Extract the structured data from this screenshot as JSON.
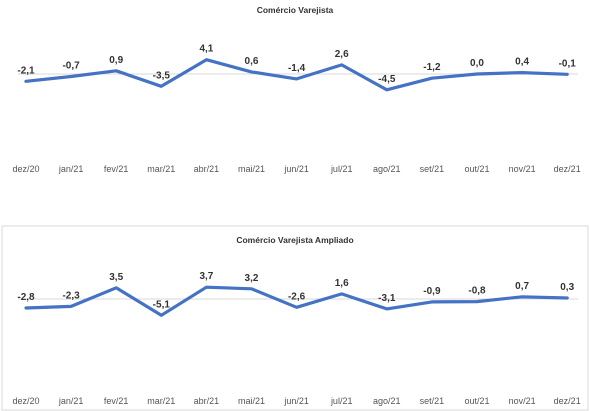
{
  "chart_data": [
    {
      "type": "line",
      "title": "Comércio Varejista",
      "categories": [
        "dez/20",
        "jan/21",
        "fev/21",
        "mar/21",
        "abr/21",
        "mai/21",
        "jun/21",
        "jul/21",
        "ago/21",
        "set/21",
        "out/21",
        "nov/21",
        "dez/21"
      ],
      "values": [
        -2.1,
        -0.7,
        0.9,
        -3.5,
        4.1,
        0.6,
        -1.4,
        2.6,
        -4.5,
        -1.2,
        0.0,
        0.4,
        -0.1
      ],
      "data_labels": [
        "-2,1",
        "-0,7",
        "0,9",
        "-3,5",
        "4,1",
        "0,6",
        "-1,4",
        "2,6",
        "-4,5",
        "-1,2",
        "0,0",
        "0,4",
        "-0,1"
      ],
      "color": "#4472C4",
      "grid": false,
      "legend": "none"
    },
    {
      "type": "line",
      "title": "Comércio Varejista Ampliado",
      "categories": [
        "dez/20",
        "jan/21",
        "fev/21",
        "mar/21",
        "abr/21",
        "mai/21",
        "jun/21",
        "jul/21",
        "ago/21",
        "set/21",
        "out/21",
        "nov/21",
        "dez/21"
      ],
      "values": [
        -2.8,
        -2.3,
        3.5,
        -5.1,
        3.7,
        3.2,
        -2.6,
        1.6,
        -3.1,
        -0.9,
        -0.8,
        0.7,
        0.3
      ],
      "data_labels": [
        "-2,8",
        "-2,3",
        "3,5",
        "-5,1",
        "3,7",
        "3,2",
        "-2,6",
        "1,6",
        "-3,1",
        "-0,9",
        "-0,8",
        "0,7",
        "0,3"
      ],
      "color": "#4472C4",
      "grid": false,
      "legend": "none"
    }
  ]
}
